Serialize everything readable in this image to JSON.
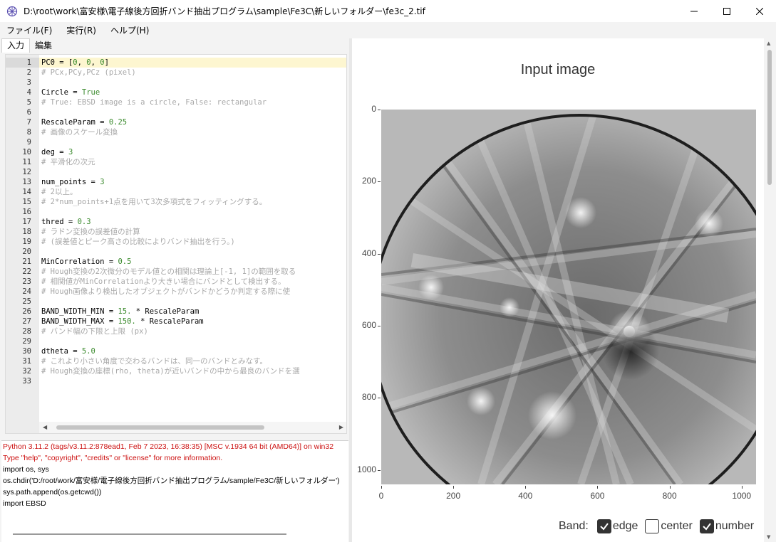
{
  "window": {
    "title": "D:\\root\\work\\富安様\\電子線後方回折バンド抽出プログラム\\sample\\Fe3C\\新しいフォルダー\\fe3c_2.tif"
  },
  "menu": [
    "ファイル(F)",
    "実行(R)",
    "ヘルプ(H)"
  ],
  "tabs": [
    "入力",
    "編集"
  ],
  "editor": {
    "lines": [
      {
        "n": "1",
        "code": [
          [
            "PC0 = [",
            "kw"
          ],
          [
            "0",
            "num"
          ],
          [
            ", ",
            "op"
          ],
          [
            "0",
            "num"
          ],
          [
            ", ",
            "op"
          ],
          [
            "0",
            "num"
          ],
          [
            "]",
            "op"
          ]
        ]
      },
      {
        "n": "2",
        "code": [
          [
            "# PCx,PCy,PCz (pixel)",
            "cm"
          ]
        ]
      },
      {
        "n": "3",
        "code": []
      },
      {
        "n": "4",
        "code": [
          [
            "Circle = ",
            "kw"
          ],
          [
            "True",
            "num"
          ]
        ]
      },
      {
        "n": "5",
        "code": [
          [
            "# True: EBSD image is a circle, False: rectangular",
            "cm"
          ]
        ]
      },
      {
        "n": "6",
        "code": []
      },
      {
        "n": "7",
        "code": [
          [
            "RescaleParam = ",
            "kw"
          ],
          [
            "0.25",
            "num"
          ]
        ]
      },
      {
        "n": "8",
        "code": [
          [
            "# 画像のスケール変換",
            "cm"
          ]
        ]
      },
      {
        "n": "9",
        "code": []
      },
      {
        "n": "10",
        "code": [
          [
            "deg = ",
            "kw"
          ],
          [
            "3",
            "num"
          ]
        ]
      },
      {
        "n": "11",
        "code": [
          [
            "# 平滑化の次元",
            "cm"
          ]
        ]
      },
      {
        "n": "12",
        "code": []
      },
      {
        "n": "13",
        "code": [
          [
            "num_points = ",
            "kw"
          ],
          [
            "3",
            "num"
          ]
        ]
      },
      {
        "n": "14",
        "code": [
          [
            "# 2以上。",
            "cm"
          ]
        ]
      },
      {
        "n": "15",
        "code": [
          [
            "# 2*num_points+1点を用いて3次多項式をフィッティングする。",
            "cm"
          ]
        ]
      },
      {
        "n": "16",
        "code": []
      },
      {
        "n": "17",
        "code": [
          [
            "thred = ",
            "kw"
          ],
          [
            "0.3",
            "num"
          ]
        ]
      },
      {
        "n": "18",
        "code": [
          [
            "# ラドン変換の誤差値の計算",
            "cm"
          ]
        ]
      },
      {
        "n": "19",
        "code": [
          [
            "# (誤差値とピーク高さの比較によりバンド抽出を行う。)",
            "cm"
          ]
        ]
      },
      {
        "n": "20",
        "code": []
      },
      {
        "n": "21",
        "code": [
          [
            "MinCorrelation = ",
            "kw"
          ],
          [
            "0.5",
            "num"
          ]
        ]
      },
      {
        "n": "22",
        "code": [
          [
            "# Hough変換の2次微分のモデル値との相関は理論上[-1, 1]の範囲を取る",
            "cm"
          ]
        ]
      },
      {
        "n": "23",
        "code": [
          [
            "# 相関値がMinCorrelationより大きい場合にバンドとして検出する。",
            "cm"
          ]
        ]
      },
      {
        "n": "24",
        "code": [
          [
            "# Hough画像より検出したオブジェクトがバンドかどうか判定する際に使",
            "cm"
          ]
        ]
      },
      {
        "n": "25",
        "code": []
      },
      {
        "n": "26",
        "code": [
          [
            "BAND_WIDTH_MIN = ",
            "kw"
          ],
          [
            "15.",
            "num"
          ],
          [
            " * RescaleParam",
            "kw"
          ]
        ]
      },
      {
        "n": "27",
        "code": [
          [
            "BAND_WIDTH_MAX = ",
            "kw"
          ],
          [
            "150.",
            "num"
          ],
          [
            " * RescaleParam",
            "kw"
          ]
        ]
      },
      {
        "n": "28",
        "code": [
          [
            "# バンド幅の下限と上限 (px)",
            "cm"
          ]
        ]
      },
      {
        "n": "29",
        "code": []
      },
      {
        "n": "30",
        "code": [
          [
            "dtheta = ",
            "kw"
          ],
          [
            "5.0",
            "num"
          ]
        ]
      },
      {
        "n": "31",
        "code": [
          [
            "# これより小さい角度で交わるバンドは、同一のバンドとみなす。",
            "cm"
          ]
        ]
      },
      {
        "n": "32",
        "code": [
          [
            "# Hough変換の座標(rho, theta)が近いバンドの中から最良のバンドを選",
            "cm"
          ]
        ]
      },
      {
        "n": "33",
        "code": []
      }
    ]
  },
  "console": {
    "lines": [
      {
        "text": "Python 3.11.2 (tags/v3.11.2:878ead1, Feb  7 2023, 16:38:35) [MSC v.1934 64 bit (AMD64)] on win32",
        "red": true
      },
      {
        "text": "Type \"help\", \"copyright\", \"credits\" or \"license\" for more information.",
        "red": true
      },
      {
        "text": "import os, sys",
        "red": false
      },
      {
        "text": "os.chdir('D:/root/work/富安様/電子線後方回折バンド抽出プログラム/sample/Fe3C/新しいフォルダー')",
        "red": false
      },
      {
        "text": "sys.path.append(os.getcwd())",
        "red": false
      },
      {
        "text": "import EBSD",
        "red": false
      }
    ]
  },
  "plot": {
    "title": "Input image",
    "y_ticks": [
      "0",
      "200",
      "400",
      "600",
      "800",
      "1000"
    ],
    "x_ticks": [
      "0",
      "200",
      "400",
      "600",
      "800",
      "1000"
    ],
    "band_label": "Band:",
    "options": [
      {
        "label": "edge",
        "checked": true
      },
      {
        "label": "center",
        "checked": false
      },
      {
        "label": "number",
        "checked": true
      }
    ]
  }
}
